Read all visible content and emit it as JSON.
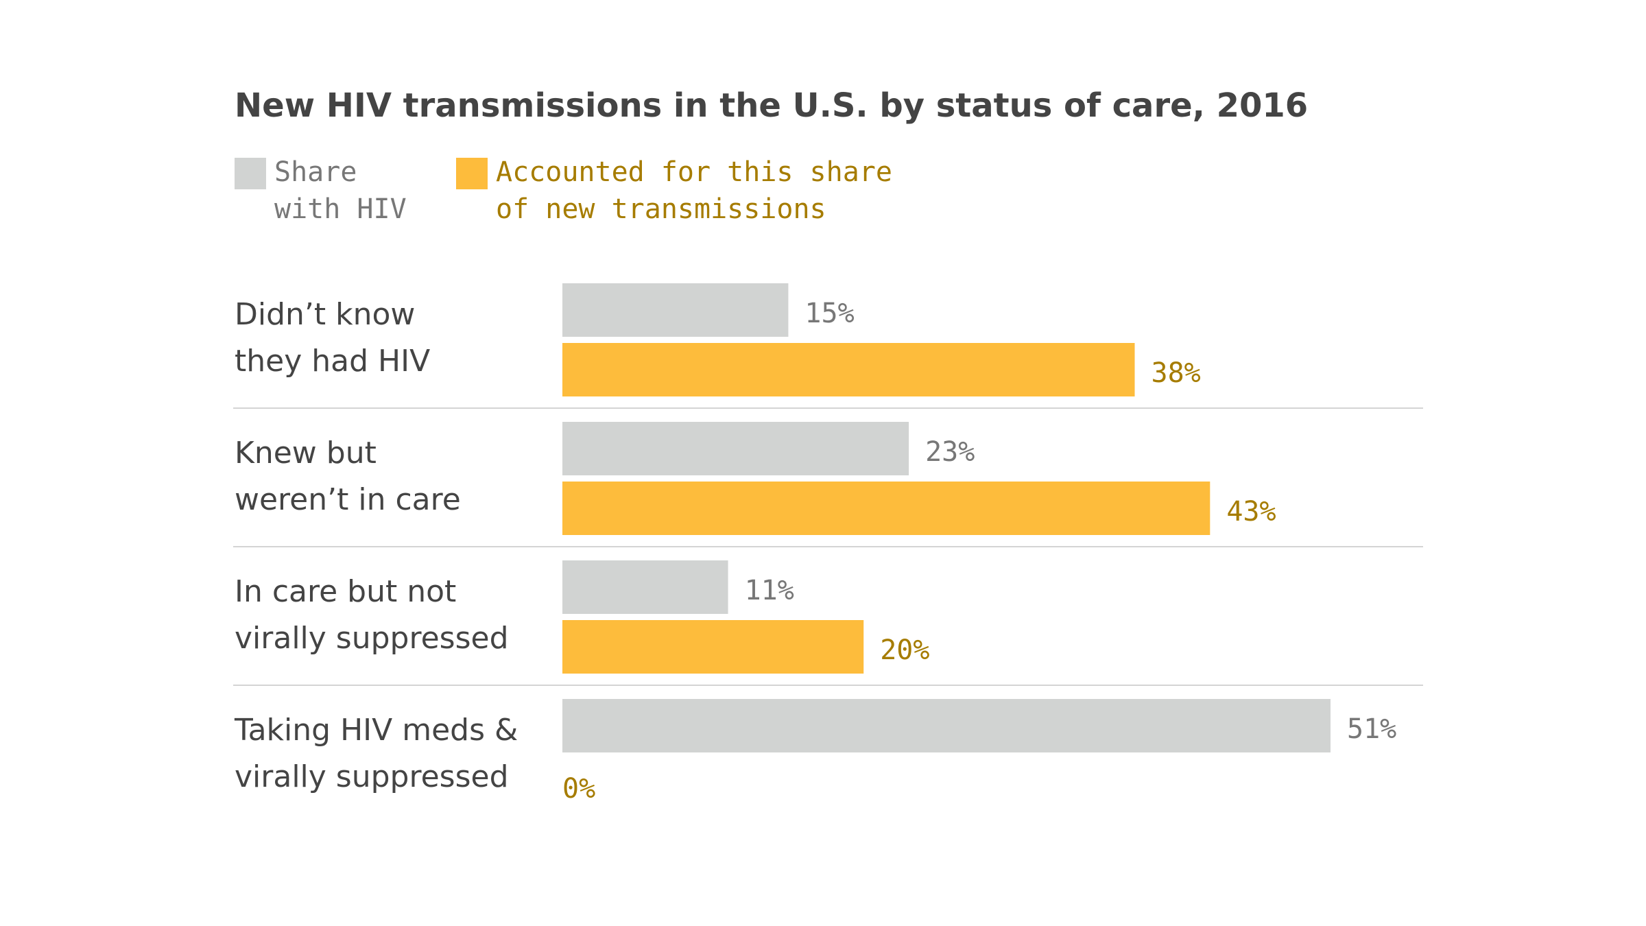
{
  "chart_data": {
    "type": "bar",
    "orientation": "horizontal",
    "title": "New HIV transmissions in the U.S. by status of care, 2016",
    "categories": [
      [
        "Didn’t know",
        "they had HIV"
      ],
      [
        "Knew but",
        "weren’t in care"
      ],
      [
        "In care but not",
        "virally suppressed"
      ],
      [
        "Taking HIV meds &",
        "virally suppressed"
      ]
    ],
    "series": [
      {
        "name": "Share with HIV",
        "legend_lines": [
          "Share",
          "with HIV"
        ],
        "values": [
          15,
          23,
          11,
          51
        ],
        "labels": [
          "15%",
          "23%",
          "11%",
          "51%"
        ],
        "color": "#d1d3d2",
        "label_color": "#777777"
      },
      {
        "name": "Accounted for this share of new transmissions",
        "legend_lines": [
          "Accounted for this share",
          "of new transmissions"
        ],
        "values": [
          38,
          43,
          20,
          0
        ],
        "labels": [
          "38%",
          "43%",
          "20%",
          "0%"
        ],
        "color": "#fdbc3c",
        "label_color": "#a67c00"
      }
    ],
    "xlim": [
      0,
      51
    ],
    "xlabel": "",
    "ylabel": "",
    "grid": false,
    "legend": "top-left",
    "separator_color": "#d4d4d4"
  }
}
